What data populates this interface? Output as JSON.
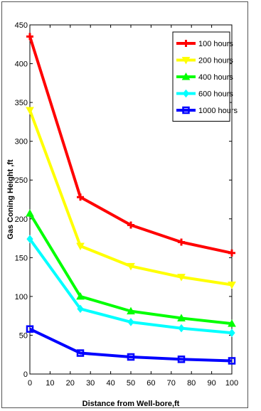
{
  "chart_data": {
    "type": "line",
    "title": "",
    "xlabel": "Distance from Well-bore,ft",
    "ylabel": "Gas Coning Height ,ft",
    "xlim": [
      0,
      100
    ],
    "ylim": [
      0,
      450
    ],
    "x_ticks": [
      0,
      10,
      20,
      30,
      40,
      50,
      60,
      70,
      80,
      90,
      100
    ],
    "y_ticks": [
      0,
      50,
      100,
      150,
      200,
      250,
      300,
      350,
      400,
      450
    ],
    "grid": false,
    "legend_position": "top-right",
    "x": [
      0,
      25,
      50,
      75,
      100
    ],
    "series": [
      {
        "name": "100 hours",
        "color": "#ff0000",
        "marker": "plus",
        "values": [
          435,
          228,
          192,
          170,
          156
        ]
      },
      {
        "name": "200 hours",
        "color": "#ffff00",
        "marker": "triangle-down",
        "values": [
          340,
          165,
          139,
          125,
          115
        ]
      },
      {
        "name": "400 hours",
        "color": "#00ff00",
        "marker": "triangle-up",
        "values": [
          207,
          100,
          81,
          72,
          65
        ]
      },
      {
        "name": "600 hours",
        "color": "#00ffff",
        "marker": "diamond",
        "values": [
          174,
          84,
          67,
          59,
          53
        ]
      },
      {
        "name": "1000 hours",
        "color": "#0000ff",
        "marker": "square",
        "values": [
          58,
          27,
          22,
          19,
          17
        ]
      }
    ]
  }
}
